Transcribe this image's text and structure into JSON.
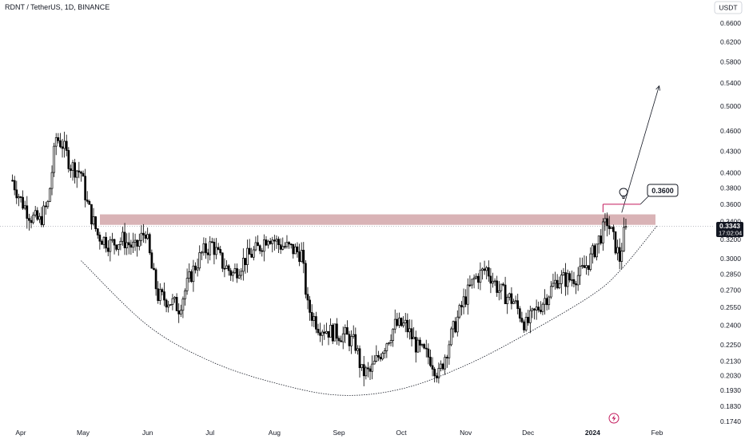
{
  "header": {
    "symbol_title": "RDNT / TetherUS, 1D, BINANCE",
    "currency_button": "USDT"
  },
  "price_badge": {
    "price": "0.3343",
    "countdown": "17:02:04",
    "color": "#131722"
  },
  "annotation_label": "0.3600",
  "colors": {
    "candle_body_up": "#ffffff",
    "candle_body_down": "#000000",
    "candle_outline": "#000000",
    "resistance_zone": "#d9b3b6",
    "annotation_line": "#c2185b",
    "bolt_icon": "#c2185b"
  },
  "icons": {
    "idea": "lightbulb-icon",
    "alert": "lightning-bolt-icon"
  },
  "chart_data": {
    "type": "candlestick",
    "y_scale": "log",
    "ylim": [
      0.17,
      0.68
    ],
    "y_ticks": [
      0.66,
      0.62,
      0.58,
      0.54,
      0.5,
      0.46,
      0.43,
      0.4,
      0.38,
      0.36,
      0.34,
      0.32,
      0.3,
      0.285,
      0.27,
      0.255,
      0.24,
      0.225,
      0.213,
      0.203,
      0.193,
      0.183,
      0.174
    ],
    "y_tick_labels": [
      "0.6600",
      "0.6200",
      "0.5800",
      "0.5400",
      "0.5000",
      "0.4600",
      "0.4300",
      "0.4000",
      "0.3800",
      "0.3600",
      "0.3400",
      "0.3200",
      "0.3000",
      "0.2850",
      "0.2700",
      "0.2550",
      "0.2400",
      "0.2250",
      "0.2130",
      "0.2030",
      "0.1930",
      "0.1830",
      "0.1740"
    ],
    "x_tick_labels": [
      "Apr",
      "May",
      "Jun",
      "Jul",
      "Aug",
      "Sep",
      "Oct",
      "Nov",
      "Dec",
      "2024",
      "Feb"
    ],
    "x_tick_dates": [
      "2023-04-01",
      "2023-05-01",
      "2023-06-01",
      "2023-07-01",
      "2023-08-01",
      "2023-09-01",
      "2023-10-01",
      "2023-11-01",
      "2023-12-01",
      "2024-01-01",
      "2024-02-01"
    ],
    "last_price": 0.3343,
    "resistance_zone": [
      0.336,
      0.348
    ],
    "target_price": 0.36,
    "projection_arrow": {
      "from": [
        "2024-01-15",
        0.35
      ],
      "to": [
        "2024-02-02",
        0.535
      ]
    },
    "cup_curve": [
      [
        "2023-04-30",
        0.298
      ],
      [
        "2023-06-01",
        0.24
      ],
      [
        "2023-07-01",
        0.213
      ],
      [
        "2023-08-01",
        0.198
      ],
      [
        "2023-09-01",
        0.19
      ],
      [
        "2023-10-01",
        0.194
      ],
      [
        "2023-11-01",
        0.21
      ],
      [
        "2023-12-01",
        0.234
      ],
      [
        "2024-01-01",
        0.266
      ],
      [
        "2024-01-15",
        0.29
      ],
      [
        "2024-02-01",
        0.335
      ]
    ],
    "series": [
      {
        "waypoints": [
          [
            "2023-03-28",
            0.39
          ],
          [
            "2023-04-01",
            0.365
          ],
          [
            "2023-04-06",
            0.345
          ],
          [
            "2023-04-10",
            0.34
          ],
          [
            "2023-04-14",
            0.36
          ],
          [
            "2023-04-18",
            0.45
          ],
          [
            "2023-04-21",
            0.44
          ],
          [
            "2023-04-25",
            0.41
          ],
          [
            "2023-04-30",
            0.4
          ],
          [
            "2023-05-03",
            0.36
          ],
          [
            "2023-05-08",
            0.325
          ],
          [
            "2023-05-14",
            0.315
          ],
          [
            "2023-05-20",
            0.32
          ],
          [
            "2023-05-26",
            0.31
          ],
          [
            "2023-05-31",
            0.33
          ],
          [
            "2023-06-03",
            0.29
          ],
          [
            "2023-06-06",
            0.265
          ],
          [
            "2023-06-12",
            0.26
          ],
          [
            "2023-06-16",
            0.255
          ],
          [
            "2023-06-22",
            0.285
          ],
          [
            "2023-06-27",
            0.305
          ],
          [
            "2023-07-02",
            0.315
          ],
          [
            "2023-07-07",
            0.295
          ],
          [
            "2023-07-12",
            0.285
          ],
          [
            "2023-07-18",
            0.3
          ],
          [
            "2023-07-24",
            0.31
          ],
          [
            "2023-07-29",
            0.325
          ],
          [
            "2023-08-03",
            0.315
          ],
          [
            "2023-08-09",
            0.31
          ],
          [
            "2023-08-14",
            0.305
          ],
          [
            "2023-08-17",
            0.255
          ],
          [
            "2023-08-22",
            0.24
          ],
          [
            "2023-08-28",
            0.235
          ],
          [
            "2023-09-04",
            0.232
          ],
          [
            "2023-09-09",
            0.225
          ],
          [
            "2023-09-12",
            0.205
          ],
          [
            "2023-09-16",
            0.205
          ],
          [
            "2023-09-22",
            0.222
          ],
          [
            "2023-09-28",
            0.24
          ],
          [
            "2023-10-03",
            0.24
          ],
          [
            "2023-10-09",
            0.222
          ],
          [
            "2023-10-15",
            0.215
          ],
          [
            "2023-10-19",
            0.203
          ],
          [
            "2023-10-25",
            0.232
          ],
          [
            "2023-10-31",
            0.26
          ],
          [
            "2023-11-05",
            0.28
          ],
          [
            "2023-11-11",
            0.29
          ],
          [
            "2023-11-17",
            0.27
          ],
          [
            "2023-11-24",
            0.26
          ],
          [
            "2023-11-30",
            0.24
          ],
          [
            "2023-12-04",
            0.25
          ],
          [
            "2023-12-10",
            0.265
          ],
          [
            "2023-12-15",
            0.28
          ],
          [
            "2023-12-21",
            0.28
          ],
          [
            "2023-12-26",
            0.285
          ],
          [
            "2023-12-31",
            0.3
          ],
          [
            "2024-01-04",
            0.32
          ],
          [
            "2024-01-08",
            0.34
          ],
          [
            "2024-01-11",
            0.32
          ],
          [
            "2024-01-14",
            0.3
          ],
          [
            "2024-01-16",
            0.325
          ],
          [
            "2024-01-17",
            0.3343
          ]
        ]
      }
    ]
  }
}
